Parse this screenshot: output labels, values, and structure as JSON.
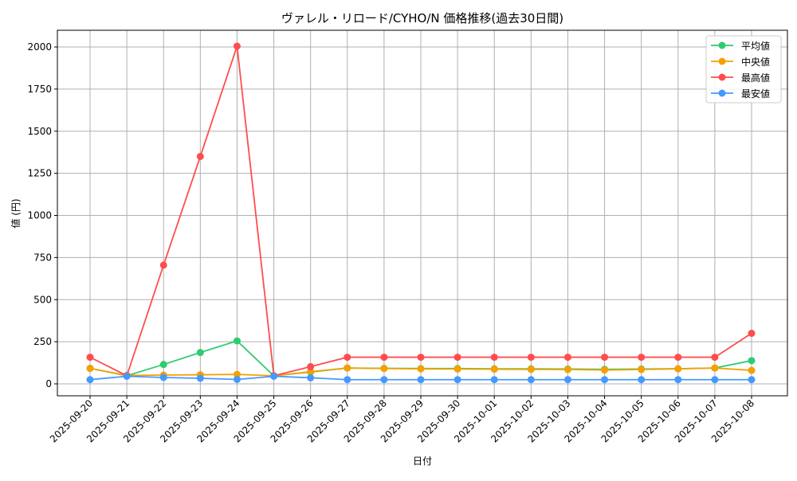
{
  "chart_data": {
    "type": "line",
    "title": "ヴァレル・リロード/CYHO/N 価格推移(過去30日間)",
    "xlabel": "日付",
    "ylabel": "値 (円)",
    "ylim": [
      -70,
      2100
    ],
    "yticks": [
      0,
      250,
      500,
      750,
      1000,
      1250,
      1500,
      1750,
      2000
    ],
    "grid": true,
    "legend_position": "top-right",
    "categories": [
      "2025-09-20",
      "2025-09-21",
      "2025-09-22",
      "2025-09-23",
      "2025-09-24",
      "2025-09-25",
      "2025-09-26",
      "2025-09-27",
      "2025-09-28",
      "2025-09-29",
      "2025-09-30",
      "2025-10-01",
      "2025-10-02",
      "2025-10-03",
      "2025-10-04",
      "2025-10-05",
      "2025-10-06",
      "2025-10-07",
      "2025-10-08"
    ],
    "series": [
      {
        "name": "平均値",
        "color": "#2ecc71",
        "values": [
          92,
          48,
          115,
          186,
          255,
          48,
          70,
          94,
          92,
          91,
          91,
          89,
          89,
          88,
          86,
          88,
          90,
          94,
          138
        ]
      },
      {
        "name": "中央値",
        "color": "#f5a000",
        "values": [
          92,
          50,
          52,
          54,
          56,
          48,
          72,
          94,
          91,
          89,
          88,
          87,
          86,
          85,
          82,
          85,
          89,
          94,
          80
        ]
      },
      {
        "name": "最高値",
        "color": "#ff4d4d",
        "values": [
          158,
          48,
          705,
          1350,
          2005,
          48,
          102,
          158,
          158,
          158,
          158,
          158,
          158,
          158,
          158,
          158,
          158,
          158,
          300
        ]
      },
      {
        "name": "最安値",
        "color": "#4499ff",
        "values": [
          25,
          45,
          38,
          33,
          26,
          45,
          36,
          25,
          25,
          25,
          25,
          25,
          25,
          25,
          25,
          25,
          25,
          25,
          25
        ]
      }
    ]
  }
}
